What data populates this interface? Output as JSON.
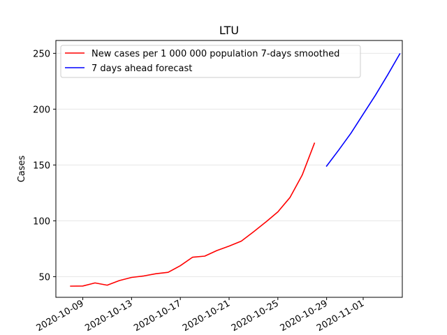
{
  "chart_data": {
    "type": "line",
    "title": "LTU",
    "xlabel": "",
    "ylabel": "Cases",
    "ylim": [
      31.5,
      261.5
    ],
    "xlim": [
      "2020-10-06T19:00",
      "2020-11-04T05:00"
    ],
    "yticks": [
      50,
      100,
      150,
      200,
      250
    ],
    "xticks": [
      "2020-10-09",
      "2020-10-13",
      "2020-10-17",
      "2020-10-21",
      "2020-10-25",
      "2020-10-29",
      "2020-11-01"
    ],
    "grid": "horizontal",
    "legend_position": "top-left",
    "series": [
      {
        "name": "New cases per 1 000 000 population 7-days smoothed",
        "color": "#ff0000",
        "x": [
          "2020-10-08",
          "2020-10-09",
          "2020-10-10",
          "2020-10-11",
          "2020-10-12",
          "2020-10-13",
          "2020-10-14",
          "2020-10-15",
          "2020-10-16",
          "2020-10-17",
          "2020-10-18",
          "2020-10-19",
          "2020-10-20",
          "2020-10-21",
          "2020-10-22",
          "2020-10-23",
          "2020-10-24",
          "2020-10-25",
          "2020-10-26",
          "2020-10-27",
          "2020-10-28"
        ],
        "y": [
          41.5,
          41.6,
          44.4,
          42.4,
          46.5,
          49.3,
          50.6,
          52.6,
          53.9,
          59.8,
          67.4,
          68.4,
          73.4,
          77.4,
          81.8,
          90.1,
          98.8,
          108.0,
          121.0,
          141.0,
          169.5
        ]
      },
      {
        "name": "7 days ahead forecast",
        "color": "#0000ff",
        "x": [
          "2020-10-29",
          "2020-10-30",
          "2020-10-31",
          "2020-11-01",
          "2020-11-02",
          "2020-11-03",
          "2020-11-04"
        ],
        "y": [
          149.0,
          163.5,
          178.5,
          195.5,
          212.5,
          230.5,
          249.5
        ]
      }
    ]
  }
}
